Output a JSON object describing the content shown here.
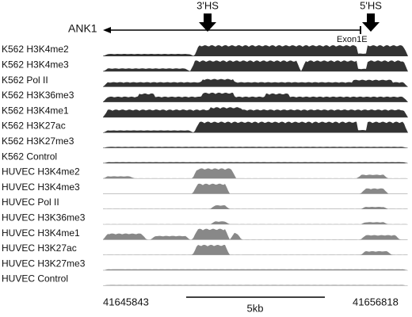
{
  "gene": "ANK1",
  "sites": [
    "3'HS",
    "5'HS"
  ],
  "exon": "Exon1E",
  "tracks": [
    "K562 H3K4me2",
    "K562 H3K4me3",
    "K562 Pol II",
    "K562 H3K36me3",
    "K562 H3K4me1",
    "K562 H3K27ac",
    "K562 H3K27me3",
    "K562 Control",
    "HUVEC H3K4me2",
    "HUVEC H3K4me3",
    "HUVEC Pol II",
    "HUVEC H3K36me3",
    "HUVEC H3K4me1",
    "HUVEC H3K27ac",
    "HUVEC H3K27me3",
    "HUVEC Control"
  ],
  "coordinates": {
    "start": "41645843",
    "end": "41656818"
  },
  "scale": "5kb"
}
